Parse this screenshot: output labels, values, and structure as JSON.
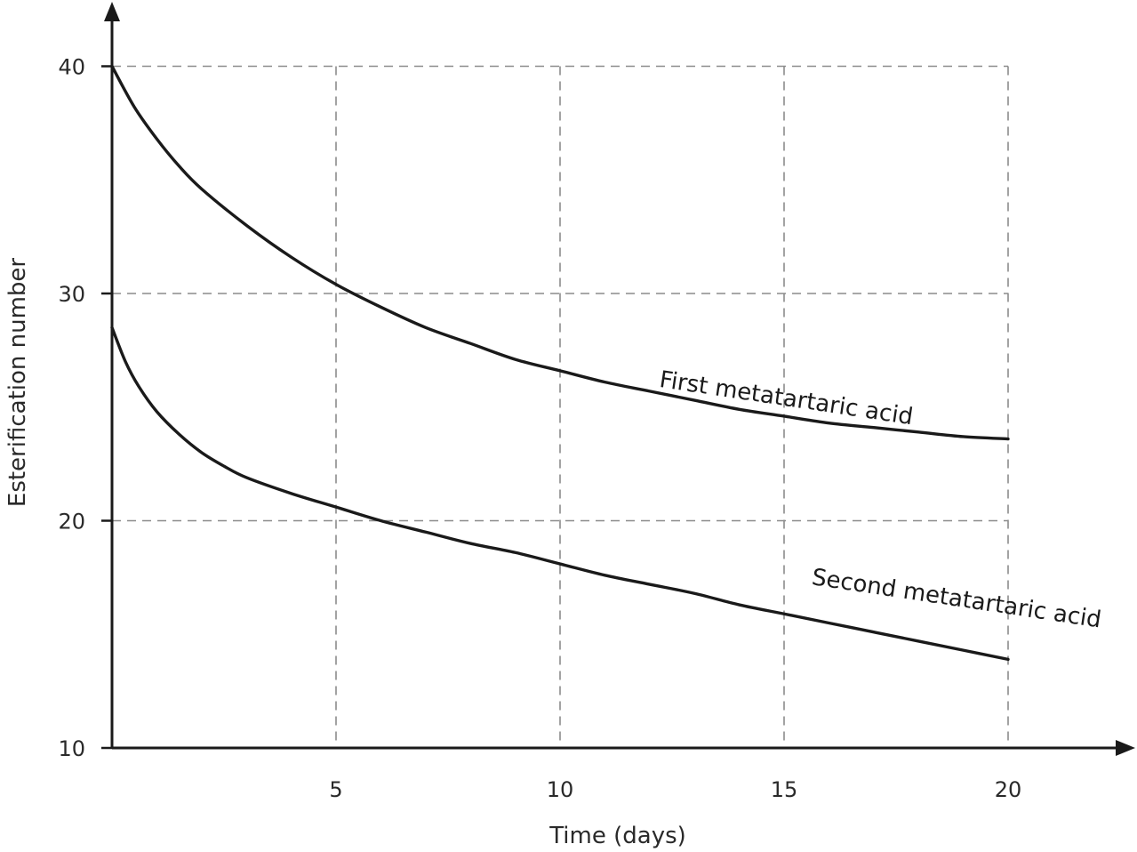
{
  "chart_data": {
    "type": "line",
    "title": "",
    "xlabel": "Time (days)",
    "ylabel": "Esterification number",
    "xlim": [
      0,
      22
    ],
    "ylim": [
      10,
      42
    ],
    "x_ticks": [
      {
        "value": 5,
        "label": "5"
      },
      {
        "value": 10,
        "label": "10"
      },
      {
        "value": 15,
        "label": "15"
      },
      {
        "value": 20,
        "label": "20"
      }
    ],
    "y_ticks": [
      {
        "value": 10,
        "label": "10"
      },
      {
        "value": 20,
        "label": "20"
      },
      {
        "value": 30,
        "label": "30"
      },
      {
        "value": 40,
        "label": "40"
      }
    ],
    "grid": true,
    "legend": "none",
    "series": [
      {
        "name": "First metatartaric acid",
        "label_anchor": {
          "x": 12.2,
          "y": 25.9,
          "angle_deg": 8.5
        },
        "x": [
          0,
          0.5,
          1,
          1.5,
          2,
          3,
          4,
          5,
          6,
          7,
          8,
          9,
          10,
          11,
          12,
          13,
          14,
          15,
          16,
          17,
          18,
          19,
          20
        ],
        "y": [
          40.0,
          38.2,
          36.8,
          35.6,
          34.6,
          33.0,
          31.6,
          30.4,
          29.4,
          28.5,
          27.8,
          27.1,
          26.6,
          26.1,
          25.7,
          25.3,
          24.9,
          24.6,
          24.3,
          24.1,
          23.9,
          23.7,
          23.6
        ]
      },
      {
        "name": "Second metatartaric acid",
        "label_anchor": {
          "x": 15.6,
          "y": 17.2,
          "angle_deg": 8.5
        },
        "x": [
          0,
          0.3,
          0.6,
          1,
          1.5,
          2,
          2.5,
          3,
          4,
          5,
          6,
          7,
          8,
          9,
          10,
          11,
          12,
          13,
          14,
          15,
          16,
          17,
          18,
          19,
          20
        ],
        "y": [
          28.5,
          27.0,
          25.9,
          24.8,
          23.8,
          23.0,
          22.4,
          21.9,
          21.2,
          20.6,
          20.0,
          19.5,
          19.0,
          18.6,
          18.1,
          17.6,
          17.2,
          16.8,
          16.3,
          15.9,
          15.5,
          15.1,
          14.7,
          14.3,
          13.9
        ]
      }
    ]
  }
}
